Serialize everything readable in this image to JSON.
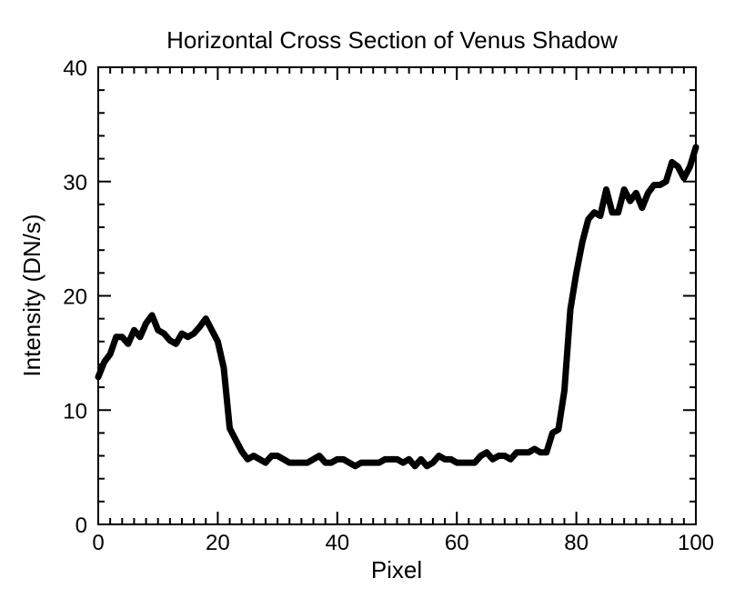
{
  "chart_data": {
    "type": "line",
    "title": "Horizontal Cross Section of Venus Shadow",
    "xlabel": "Pixel",
    "ylabel": "Intensity (DN/s)",
    "xlim": [
      0,
      100
    ],
    "ylim": [
      0,
      40
    ],
    "x_ticks": [
      0,
      20,
      40,
      60,
      80,
      100
    ],
    "y_ticks": [
      0,
      10,
      20,
      30,
      40
    ],
    "x_minor_step": 2,
    "y_minor_step": 2,
    "grid": false,
    "line_color": "#000000",
    "series": [
      {
        "x": [
          0,
          1,
          2,
          3,
          4,
          5,
          6,
          7,
          8,
          9,
          10,
          11,
          12,
          13,
          14,
          15,
          16,
          17,
          18,
          19,
          20,
          21,
          22,
          23,
          24,
          25,
          26,
          27,
          28,
          29,
          30,
          31,
          32,
          33,
          34,
          35,
          36,
          37,
          38,
          39,
          40,
          41,
          42,
          43,
          44,
          45,
          46,
          47,
          48,
          49,
          50,
          51,
          52,
          53,
          54,
          55,
          56,
          57,
          58,
          59,
          60,
          61,
          62,
          63,
          64,
          65,
          66,
          67,
          68,
          69,
          70,
          71,
          72,
          73,
          74,
          75,
          76,
          77,
          78,
          79,
          80,
          81,
          82,
          83,
          84,
          85,
          86,
          87,
          88,
          89,
          90,
          91,
          92,
          93,
          94,
          95,
          96,
          97,
          98,
          99,
          100
        ],
        "y": [
          12.9,
          14.2,
          14.9,
          16.4,
          16.4,
          15.8,
          17.0,
          16.4,
          17.6,
          18.3,
          17.0,
          16.7,
          16.1,
          15.8,
          16.7,
          16.4,
          16.7,
          17.3,
          18.0,
          17.0,
          16.0,
          13.7,
          8.4,
          7.4,
          6.4,
          5.7,
          6.0,
          5.7,
          5.4,
          6.0,
          6.0,
          5.7,
          5.4,
          5.4,
          5.4,
          5.4,
          5.7,
          6.0,
          5.4,
          5.4,
          5.7,
          5.7,
          5.4,
          5.1,
          5.4,
          5.4,
          5.4,
          5.4,
          5.7,
          5.7,
          5.7,
          5.4,
          5.7,
          5.1,
          5.7,
          5.1,
          5.4,
          6.0,
          5.7,
          5.7,
          5.4,
          5.4,
          5.4,
          5.4,
          6.0,
          6.3,
          5.7,
          6.0,
          6.0,
          5.7,
          6.3,
          6.3,
          6.3,
          6.6,
          6.3,
          6.3,
          8.0,
          8.3,
          11.7,
          18.8,
          22.0,
          24.7,
          26.7,
          27.3,
          27.0,
          29.3,
          27.3,
          27.3,
          29.3,
          28.3,
          29.0,
          27.7,
          29.0,
          29.7,
          29.7,
          30.0,
          31.7,
          31.3,
          30.3,
          31.3,
          33.0
        ]
      }
    ]
  }
}
